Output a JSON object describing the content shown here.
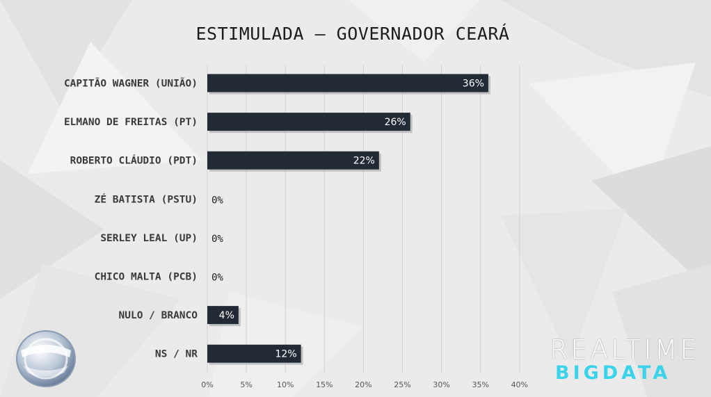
{
  "chart_data": {
    "type": "bar",
    "orientation": "horizontal",
    "title": "ESTIMULADA – GOVERNADOR CEARÁ",
    "categories": [
      "CAPITÃO WAGNER (UNIÃO)",
      "ELMANO DE FREITAS (PT)",
      "ROBERTO CLÁUDIO (PDT)",
      "ZÉ BATISTA (PSTU)",
      "SERLEY LEAL (UP)",
      "CHICO MALTA (PCB)",
      "NULO / BRANCO",
      "NS / NR"
    ],
    "values": [
      36,
      26,
      22,
      0,
      0,
      0,
      4,
      12
    ],
    "value_labels": [
      "36%",
      "26%",
      "22%",
      "0%",
      "0%",
      "0%",
      "4%",
      "12%"
    ],
    "x_ticks": [
      "0%",
      "5%",
      "10%",
      "15%",
      "20%",
      "25%",
      "30%",
      "35%",
      "40%"
    ],
    "xlim": [
      0,
      40
    ],
    "xlabel": "",
    "ylabel": "",
    "grid": true,
    "bar_color": "#222a35"
  },
  "branding": {
    "line1": "REALTIME",
    "line2": "BIGDATA",
    "accent": "#3ad3ea"
  },
  "logo": {
    "icon": "record-tv-logo-icon"
  }
}
